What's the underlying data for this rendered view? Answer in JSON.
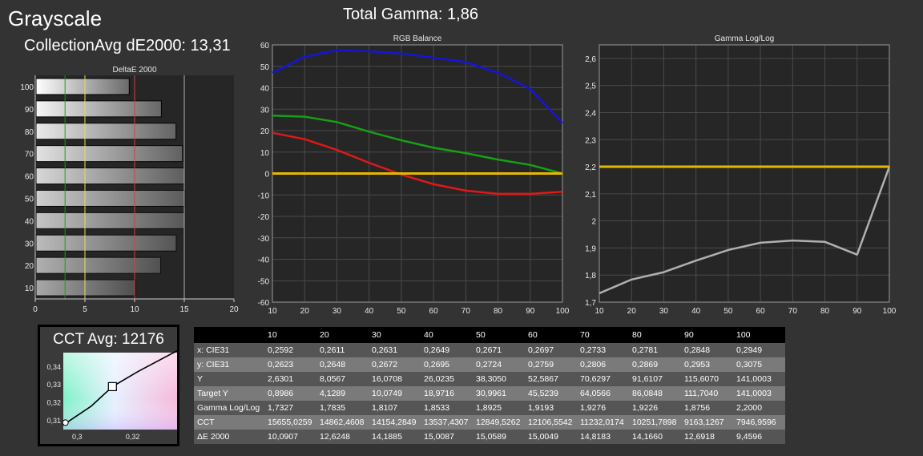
{
  "title": "Grayscale",
  "total_gamma": "Total Gamma: 1,86",
  "collection_avg": "CollectionAvg dE2000: 13,31",
  "cct_avg": "CCT Avg: 12176",
  "colors": {
    "red": "#e01818",
    "green": "#16a016",
    "blue": "#1515d8",
    "yellow": "#e6b800",
    "gray": "#b0b0b0"
  },
  "chart_data": [
    {
      "type": "bar",
      "title": "DeltaE 2000",
      "orientation": "horizontal",
      "categories": [
        "100",
        "90",
        "80",
        "70",
        "60",
        "50",
        "40",
        "30",
        "20",
        "10"
      ],
      "values": [
        9.4596,
        12.6918,
        14.166,
        14.8183,
        15.0049,
        15.0589,
        15.0087,
        14.1885,
        12.6248,
        10.0907
      ],
      "xlim": [
        0,
        20
      ],
      "xticks": [
        "0",
        "5",
        "10",
        "15",
        "20"
      ],
      "reference_lines": [
        3,
        5,
        10,
        15
      ]
    },
    {
      "type": "line",
      "title": "RGB Balance",
      "x": [
        10,
        20,
        30,
        40,
        50,
        60,
        70,
        80,
        90,
        100
      ],
      "series": [
        {
          "color": "red",
          "values": [
            19,
            16,
            11,
            5,
            -0.5,
            -5,
            -8,
            -9.5,
            -9.5,
            -8.5
          ]
        },
        {
          "color": "green",
          "values": [
            27,
            26.5,
            24,
            19.5,
            15.5,
            12,
            9.5,
            6.5,
            4,
            0
          ]
        },
        {
          "color": "blue",
          "values": [
            47,
            54.5,
            57.5,
            57,
            56,
            54,
            52,
            47,
            39.5,
            23.5
          ]
        },
        {
          "color": "yellow",
          "values": [
            0,
            0,
            0,
            0,
            0,
            0,
            0,
            0,
            0,
            0
          ]
        }
      ],
      "ylim": [
        -60,
        60
      ],
      "yticks": [
        "60",
        "50",
        "40",
        "30",
        "20",
        "10",
        "0",
        "-10",
        "-20",
        "-30",
        "-40",
        "-50",
        "-60"
      ],
      "xticks": [
        "10",
        "20",
        "30",
        "40",
        "50",
        "60",
        "70",
        "80",
        "90",
        "100"
      ]
    },
    {
      "type": "line",
      "title": "Gamma Log/Log",
      "x": [
        10,
        20,
        30,
        40,
        50,
        60,
        70,
        80,
        90,
        100
      ],
      "series": [
        {
          "color": "gray",
          "values": [
            1.7327,
            1.7835,
            1.8107,
            1.8533,
            1.8925,
            1.9193,
            1.9276,
            1.9226,
            1.8756,
            2.2
          ]
        },
        {
          "color": "yellow",
          "values": [
            2.2,
            2.2,
            2.2,
            2.2,
            2.2,
            2.2,
            2.2,
            2.2,
            2.2,
            2.2
          ]
        }
      ],
      "ylim": [
        1.7,
        2.65
      ],
      "yticks": [
        "2,6",
        "2,5",
        "2,4",
        "2,3",
        "2,2",
        "2,1",
        "2",
        "1,9",
        "1,8",
        "1,7"
      ],
      "xticks": [
        "10",
        "20",
        "30",
        "40",
        "50",
        "60",
        "70",
        "80",
        "90",
        "100"
      ]
    },
    {
      "type": "scatter",
      "title": "",
      "xlim": [
        0.295,
        0.336
      ],
      "ylim": [
        0.305,
        0.348
      ],
      "xticks": [
        "0,3",
        "0,32"
      ],
      "yticks": [
        "0,34",
        "0,33",
        "0,32",
        "0,31"
      ],
      "points": [
        {
          "marker": "circle",
          "x": 0.2949,
          "y": 0.3075
        },
        {
          "marker": "square",
          "x": 0.3127,
          "y": 0.329
        }
      ]
    },
    {
      "type": "table",
      "columns": [
        "10",
        "20",
        "30",
        "40",
        "50",
        "60",
        "70",
        "80",
        "90",
        "100"
      ],
      "rows": [
        {
          "label": "x: CIE31",
          "values": [
            "0,2592",
            "0,2611",
            "0,2631",
            "0,2649",
            "0,2671",
            "0,2697",
            "0,2733",
            "0,2781",
            "0,2848",
            "0,2949"
          ]
        },
        {
          "label": "y: CIE31",
          "values": [
            "0,2623",
            "0,2648",
            "0,2672",
            "0,2695",
            "0,2724",
            "0,2759",
            "0,2806",
            "0,2869",
            "0,2953",
            "0,3075"
          ]
        },
        {
          "label": "Y",
          "values": [
            "2,6301",
            "8,0567",
            "16,0708",
            "26,0235",
            "38,3050",
            "52,5867",
            "70,6297",
            "91,6107",
            "115,6070",
            "141,0003"
          ]
        },
        {
          "label": "Target Y",
          "values": [
            "0,8986",
            "4,1289",
            "10,0749",
            "18,9716",
            "30,9961",
            "45,5239",
            "64,0566",
            "86,0848",
            "111,7040",
            "141,0003"
          ]
        },
        {
          "label": "Gamma Log/Log",
          "values": [
            "1,7327",
            "1,7835",
            "1,8107",
            "1,8533",
            "1,8925",
            "1,9193",
            "1,9276",
            "1,9226",
            "1,8756",
            "2,2000"
          ]
        },
        {
          "label": "CCT",
          "values": [
            "15655,0259",
            "14862,4608",
            "14154,2849",
            "13537,4307",
            "12849,5262",
            "12106,5542",
            "11232,0174",
            "10251,7898",
            "9163,1267",
            "7946,9596"
          ]
        },
        {
          "label": "ΔE 2000",
          "values": [
            "10,0907",
            "12,6248",
            "14,1885",
            "15,0087",
            "15,0589",
            "15,0049",
            "14,8183",
            "14,1660",
            "12,6918",
            "9,4596"
          ]
        }
      ]
    }
  ]
}
